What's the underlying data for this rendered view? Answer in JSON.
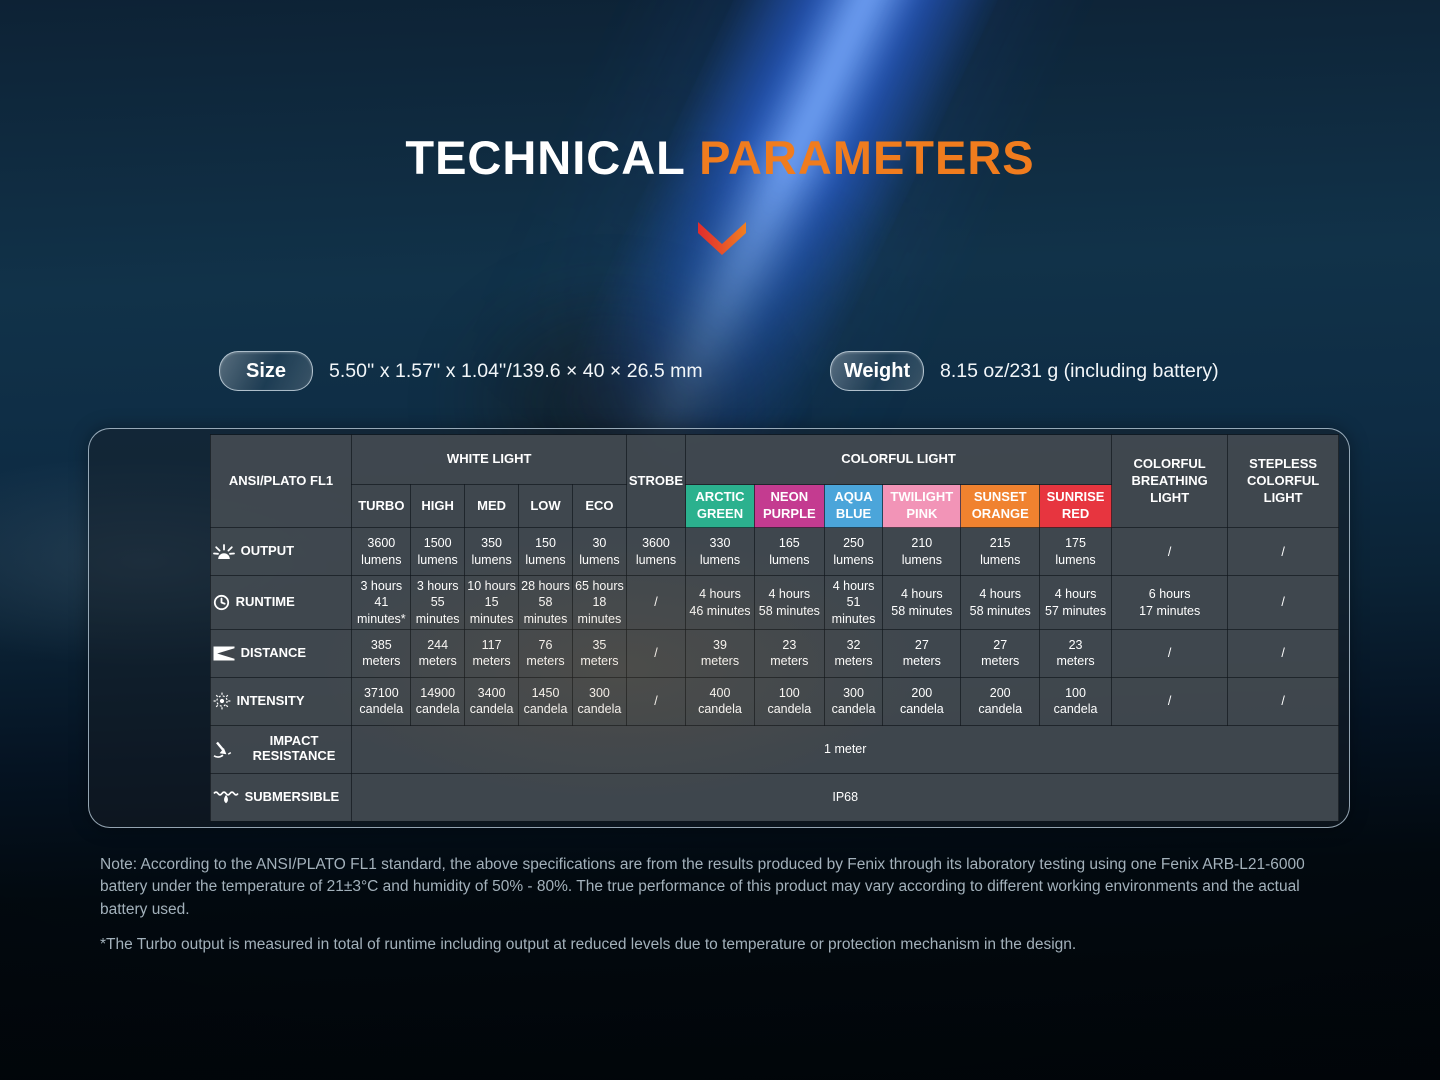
{
  "title": {
    "white_part": "TECHNICAL",
    "orange_part": " PARAMETERS",
    "accent_orange": "#f07c1e",
    "chevron_red": "#e23530"
  },
  "specs": {
    "size_label": "Size",
    "size_value": "5.50'' x 1.57'' x 1.04''/139.6 × 40 × 26.5 mm",
    "weight_label": "Weight",
    "weight_value": "8.15 oz/231 g (including battery)"
  },
  "table": {
    "corner_label": "ANSI/PLATO FL1",
    "group_headers": [
      {
        "label": "WHITE LIGHT",
        "colspan": 5
      },
      {
        "label": "STROBE",
        "rowspan": 2
      },
      {
        "label": "COLORFUL LIGHT",
        "colspan": 6
      },
      {
        "label": "COLORFUL BREATHING LIGHT",
        "rowspan": 2
      },
      {
        "label": "STEPLESS COLORFUL LIGHT",
        "rowspan": 2
      }
    ],
    "sub_headers": [
      {
        "label": "TURBO"
      },
      {
        "label": "HIGH"
      },
      {
        "label": "MED"
      },
      {
        "label": "LOW"
      },
      {
        "label": "ECO"
      },
      {
        "label": "ARCTIC GREEN",
        "color": "#2bb18e"
      },
      {
        "label": "NEON PURPLE",
        "color": "#c43b90"
      },
      {
        "label": "AQUA BLUE",
        "color": "#4ba5da"
      },
      {
        "label": "TWILIGHT PINK",
        "color": "#f294b7"
      },
      {
        "label": "SUNSET ORANGE",
        "color": "#f0822f"
      },
      {
        "label": "SUNRISE RED",
        "color": "#e7353f"
      }
    ],
    "rows": [
      {
        "label": "OUTPUT",
        "icon": "light-output-icon",
        "cells": [
          [
            "3600",
            "lumens"
          ],
          [
            "1500",
            "lumens"
          ],
          [
            "350",
            "lumens"
          ],
          [
            "150",
            "lumens"
          ],
          [
            "30",
            "lumens"
          ],
          [
            "3600",
            "lumens"
          ],
          [
            "330",
            "lumens"
          ],
          [
            "165",
            "lumens"
          ],
          [
            "250",
            "lumens"
          ],
          [
            "210",
            "lumens"
          ],
          [
            "215",
            "lumens"
          ],
          [
            "175",
            "lumens"
          ],
          [
            "/"
          ],
          [
            "/"
          ]
        ]
      },
      {
        "label": "RUNTIME",
        "icon": "runtime-clock-icon",
        "cells": [
          [
            "3 hours",
            "41 minutes*"
          ],
          [
            "3 hours",
            "55 minutes"
          ],
          [
            "10 hours",
            "15 minutes"
          ],
          [
            "28 hours",
            "58 minutes"
          ],
          [
            "65 hours",
            "18 minutes"
          ],
          [
            "/"
          ],
          [
            "4 hours",
            "46 minutes"
          ],
          [
            "4 hours",
            "58 minutes"
          ],
          [
            "4 hours",
            "51 minutes"
          ],
          [
            "4 hours",
            "58 minutes"
          ],
          [
            "4 hours",
            "58 minutes"
          ],
          [
            "4 hours",
            "57 minutes"
          ],
          [
            "6 hours",
            "17 minutes"
          ],
          [
            "/"
          ]
        ]
      },
      {
        "label": "DISTANCE",
        "icon": "distance-beam-icon",
        "cells": [
          [
            "385",
            "meters"
          ],
          [
            "244",
            "meters"
          ],
          [
            "117",
            "meters"
          ],
          [
            "76",
            "meters"
          ],
          [
            "35",
            "meters"
          ],
          [
            "/"
          ],
          [
            "39",
            "meters"
          ],
          [
            "23",
            "meters"
          ],
          [
            "32",
            "meters"
          ],
          [
            "27",
            "meters"
          ],
          [
            "27",
            "meters"
          ],
          [
            "23",
            "meters"
          ],
          [
            "/"
          ],
          [
            "/"
          ]
        ]
      },
      {
        "label": "INTENSITY",
        "icon": "intensity-target-icon",
        "cells": [
          [
            "37100",
            "candela"
          ],
          [
            "14900",
            "candela"
          ],
          [
            "3400",
            "candela"
          ],
          [
            "1450",
            "candela"
          ],
          [
            "300",
            "candela"
          ],
          [
            "/"
          ],
          [
            "400",
            "candela"
          ],
          [
            "100",
            "candela"
          ],
          [
            "300",
            "candela"
          ],
          [
            "200",
            "candela"
          ],
          [
            "200",
            "candela"
          ],
          [
            "100",
            "candela"
          ],
          [
            "/"
          ],
          [
            "/"
          ]
        ]
      },
      {
        "label": "IMPACT RESISTANCE",
        "icon": "impact-resistance-icon",
        "span_value": "1 meter"
      },
      {
        "label": "SUBMERSIBLE",
        "icon": "submersible-water-icon",
        "span_value": "IP68"
      }
    ]
  },
  "notes": [
    "Note: According to the ANSI/PLATO FL1 standard, the above specifications are from the results produced by Fenix through its laboratory testing using one Fenix ARB-L21-6000 battery under the temperature of 21±3°C and humidity of 50% - 80%. The true performance of this product may vary according to different working environments and the actual battery used.",
    "*The Turbo output is measured in total of runtime including output at reduced levels due to temperature or protection mechanism in the design."
  ]
}
